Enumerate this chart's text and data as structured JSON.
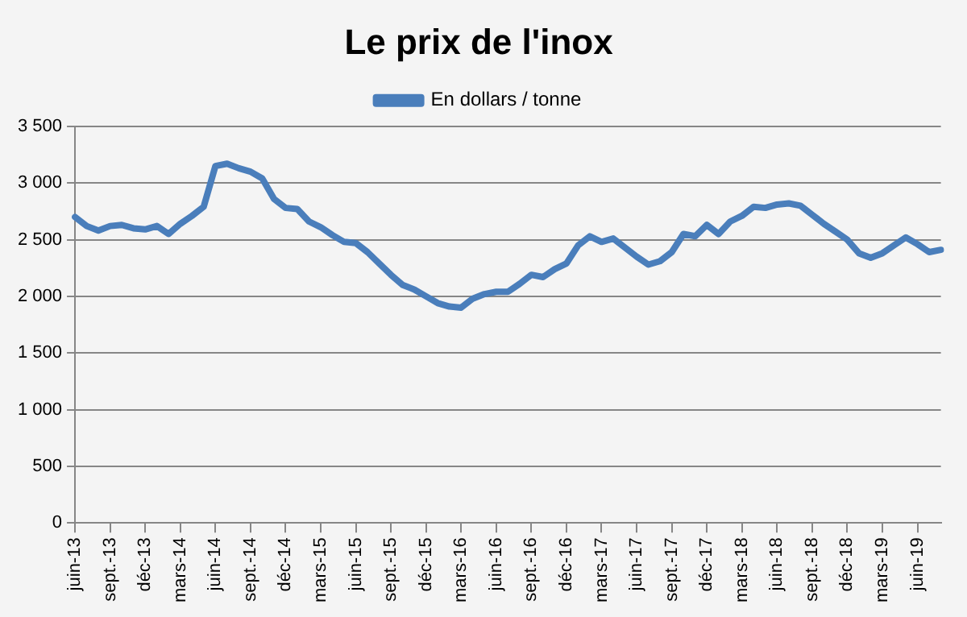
{
  "chart_data": {
    "type": "line",
    "title": "Le prix de l'inox",
    "categories": [
      "juin-13",
      null,
      null,
      "sept.-13",
      null,
      null,
      "déc-13",
      null,
      null,
      "mars-14",
      null,
      null,
      "juin-14",
      null,
      null,
      "sept.-14",
      null,
      null,
      "déc-14",
      null,
      null,
      "mars-15",
      null,
      null,
      "juin-15",
      null,
      null,
      "sept.-15",
      null,
      null,
      "déc-15",
      null,
      null,
      "mars-16",
      null,
      null,
      "juin-16",
      null,
      null,
      "sept.-16",
      null,
      null,
      "déc-16",
      null,
      null,
      "mars-17",
      null,
      null,
      "juin-17",
      null,
      null,
      "sept.-17",
      null,
      null,
      "déc-17",
      null,
      null,
      "mars-18",
      null,
      null,
      "juin-18",
      null,
      null,
      "sept.-18",
      null,
      null,
      "déc-18",
      null,
      null,
      "mars-19",
      null,
      null,
      "juin-19",
      null,
      null
    ],
    "series": [
      {
        "name": "En dollars / tonne",
        "color": "#4a7ebb",
        "values": [
          2700,
          2620,
          2580,
          2620,
          2630,
          2600,
          2590,
          2620,
          2550,
          2640,
          2710,
          2790,
          3150,
          3170,
          3130,
          3100,
          3040,
          2860,
          2780,
          2770,
          2660,
          2610,
          2540,
          2480,
          2470,
          2390,
          2290,
          2190,
          2100,
          2060,
          2000,
          1940,
          1910,
          1900,
          1980,
          2020,
          2040,
          2040,
          2110,
          2190,
          2170,
          2240,
          2290,
          2450,
          2530,
          2480,
          2510,
          2430,
          2350,
          2280,
          2310,
          2390,
          2550,
          2530,
          2630,
          2550,
          2660,
          2710,
          2790,
          2780,
          2810,
          2820,
          2800,
          2720,
          2640,
          2570,
          2500,
          2380,
          2340,
          2380,
          2450,
          2520,
          2460,
          2390,
          2410
        ]
      }
    ],
    "ylim": [
      0,
      3500
    ],
    "yticks": [
      {
        "value": 0,
        "label": "0"
      },
      {
        "value": 500,
        "label": "500"
      },
      {
        "value": 1000,
        "label": "1 000"
      },
      {
        "value": 1500,
        "label": "1 500"
      },
      {
        "value": 2000,
        "label": "2 000"
      },
      {
        "value": 2500,
        "label": "2 500"
      },
      {
        "value": 3000,
        "label": "3 000"
      },
      {
        "value": 3500,
        "label": "3 500"
      }
    ],
    "grid": "y",
    "legend": "top",
    "marker": "none",
    "line_style": "solid"
  }
}
